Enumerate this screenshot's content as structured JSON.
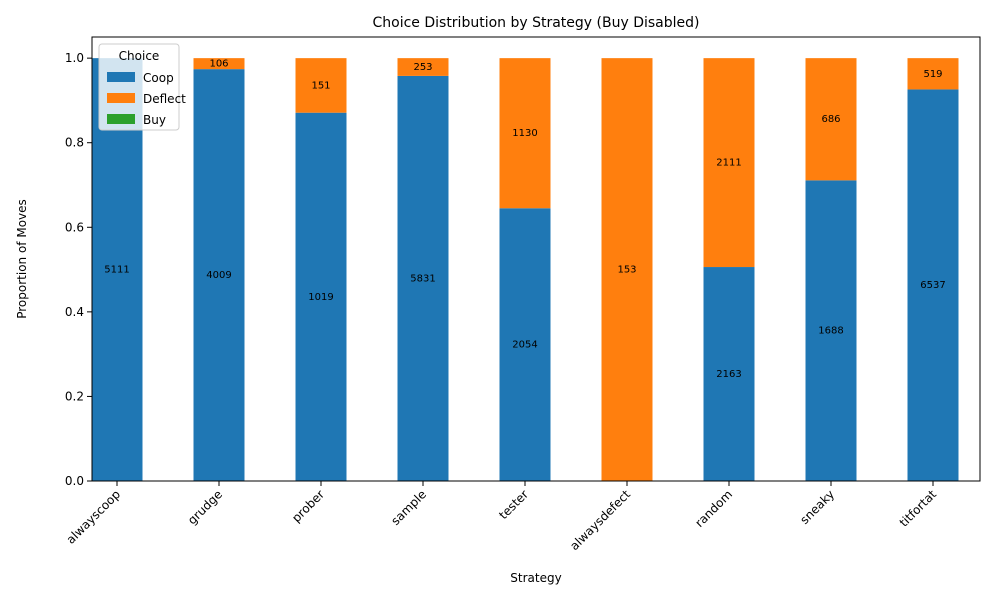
{
  "chart_data": {
    "type": "stacked_bar",
    "title": "Choice Distribution by Strategy (Buy Disabled)",
    "x_label": "Strategy",
    "y_label": "Proportion of Moves",
    "categories": [
      "alwayscoop",
      "grudge",
      "prober",
      "sample",
      "tester",
      "alwaysdefect",
      "random",
      "sneaky",
      "titfortat"
    ],
    "series": [
      {
        "name": "Coop",
        "color": "#1f77b4",
        "values": [
          1.0,
          0.974,
          0.871,
          0.958,
          0.645,
          0,
          0.506,
          0.711,
          0.926
        ],
        "counts": [
          5111,
          4009,
          1019,
          5831,
          2054,
          null,
          2163,
          1688,
          6537
        ]
      },
      {
        "name": "Deflect",
        "color": "#ff7f0e",
        "values": [
          0,
          0.026,
          0.129,
          0.042,
          0.355,
          1.0,
          0.494,
          0.289,
          0.074
        ],
        "counts": [
          null,
          106,
          151,
          253,
          1130,
          153,
          2111,
          686,
          519
        ]
      },
      {
        "name": "Buy",
        "color": "#2ca02c",
        "values": [
          0,
          0,
          0,
          0,
          0,
          0,
          0,
          0,
          0
        ]
      }
    ],
    "legend_title": "Choice",
    "legend": "upper left",
    "ylim": [
      0,
      1.05
    ],
    "yticks": [
      {
        "value": 0,
        "label": "0.0"
      },
      {
        "value": 0.2,
        "label": "0.2"
      },
      {
        "value": 0.4,
        "label": "0.4"
      },
      {
        "value": 0.6,
        "label": "0.6"
      },
      {
        "value": 0.8,
        "label": "0.8"
      },
      {
        "value": 1.0,
        "label": "1.0"
      }
    ]
  }
}
